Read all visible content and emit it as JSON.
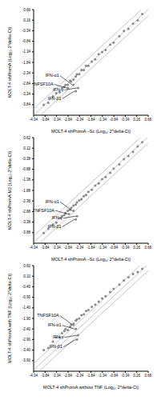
{
  "chart_data": [
    {
      "type": "scatter",
      "x_label": "MOLT-4 shPromA –Sc (Log₁₀ 2^delta-Ct)",
      "y_label": "MOLT-4 shPromA (Log₁₀ 2^delta-Ct)",
      "color": "#888888",
      "line_color": "#9a9a9a",
      "xlim": [
        -4.34,
        0.66
      ],
      "ylim": [
        -4.34,
        0.66
      ],
      "xticks": [
        -4.34,
        -3.84,
        -3.34,
        -2.84,
        -2.34,
        -1.84,
        -1.34,
        -0.84,
        -0.34,
        0.16,
        0.66
      ],
      "yticks": [
        -3.84,
        -3.34,
        -2.84,
        -2.34,
        -1.84,
        -1.34,
        -0.84,
        -0.34,
        0.16,
        0.66
      ],
      "diagonal_offsets": [
        -0.3,
        0,
        0.3
      ],
      "x": [
        -3.9,
        -3.7,
        -3.5,
        -3.35,
        -3.2,
        -3.1,
        -3.0,
        -2.95,
        -2.85,
        -2.75,
        -2.7,
        -2.6,
        -2.5,
        -2.45,
        -2.35,
        -2.25,
        -2.15,
        -2.05,
        -1.95,
        -1.8,
        -1.65,
        -1.5,
        -1.35,
        -1.2,
        -1.0,
        -0.85,
        -0.6,
        -0.4,
        -0.2,
        0.0,
        0.2,
        0.4,
        -2.6,
        -2.85,
        -2.4,
        -2.5
      ],
      "y": [
        -3.85,
        -3.75,
        -3.45,
        -3.3,
        -3.25,
        -3.05,
        -3.0,
        -2.9,
        -2.9,
        -2.7,
        -2.75,
        -2.65,
        -2.5,
        -2.4,
        -2.4,
        -2.2,
        -2.2,
        -2.0,
        -2.0,
        -1.8,
        -1.7,
        -1.45,
        -1.35,
        -1.25,
        -1.0,
        -0.9,
        -0.6,
        -0.35,
        -0.25,
        0.0,
        0.15,
        0.45,
        -2.9,
        -3.05,
        -3.05,
        -3.2
      ],
      "annotations": [
        {
          "text": "IFN-α1",
          "x": -2.6,
          "y": -2.9
        },
        {
          "text": "TNFSF10A",
          "x": -2.85,
          "y": -3.05
        },
        {
          "text": "IFN-γ",
          "x": -2.4,
          "y": -3.05
        },
        {
          "text": "IFN-β1",
          "x": -2.5,
          "y": -3.2
        }
      ]
    },
    {
      "type": "scatter",
      "x_label": "MOLT-4 shPromA –Sc (Log₁₀ 2^delta-Ct)",
      "y_label": "MOLT-4 shPromA-M2 (Log₁₀ 2^delta-Ct)",
      "color": "#888888",
      "line_color": "#9a9a9a",
      "xlim": [
        -4.34,
        0.66
      ],
      "ylim": [
        -4.38,
        0.62
      ],
      "xticks": [
        -4.34,
        -3.84,
        -3.34,
        -2.84,
        -2.34,
        -1.84,
        -1.34,
        -0.84,
        -0.34,
        0.16,
        0.66
      ],
      "yticks": [
        -3.88,
        -3.38,
        -2.88,
        -2.38,
        -1.88,
        -1.38,
        -0.88,
        -0.38,
        0.12,
        0.62
      ],
      "diagonal_offsets": [
        -0.3,
        0,
        0.3
      ],
      "x": [
        -3.9,
        -3.7,
        -3.5,
        -3.35,
        -3.2,
        -3.1,
        -3.0,
        -2.95,
        -2.85,
        -2.75,
        -2.7,
        -2.6,
        -2.5,
        -2.45,
        -2.35,
        -2.25,
        -2.15,
        -2.05,
        -1.95,
        -1.8,
        -1.65,
        -1.5,
        -1.35,
        -1.2,
        -1.0,
        -0.85,
        -0.6,
        -0.4,
        -0.2,
        0.0,
        0.2,
        0.4,
        -2.6,
        -2.8,
        -2.45,
        -2.5
      ],
      "y": [
        -3.9,
        -3.7,
        -3.5,
        -3.4,
        -3.2,
        -3.1,
        -3.05,
        -2.95,
        -2.85,
        -2.8,
        -2.7,
        -2.6,
        -2.55,
        -2.45,
        -2.35,
        -2.3,
        -2.15,
        -2.1,
        -1.95,
        -1.85,
        -1.65,
        -1.55,
        -1.35,
        -1.25,
        -1.05,
        -0.85,
        -0.65,
        -0.4,
        -0.25,
        -0.05,
        0.2,
        0.4,
        -2.85,
        -3.0,
        -3.1,
        -3.25
      ],
      "annotations": [
        {
          "text": "IFN-α1",
          "x": -2.6,
          "y": -2.85
        },
        {
          "text": "TNFSF10A",
          "x": -2.8,
          "y": -3.0
        },
        {
          "text": "IFN-γ",
          "x": -2.45,
          "y": -3.1
        },
        {
          "text": "IFN-β1",
          "x": -2.5,
          "y": -3.25
        }
      ]
    },
    {
      "type": "scatter",
      "x_label": "MOLT-4 shPromA without TNF (Log₁₀ 2^delta-Ct)",
      "y_label": "MOLT-4 shPromA with TNF (Log₁₀ 2^delta-Ct)",
      "color": "#888888",
      "line_color": "#9a9a9a",
      "xlim": [
        -4.34,
        0.66
      ],
      "ylim": [
        -4.4,
        0.6
      ],
      "xticks": [
        -4.34,
        -3.84,
        -3.34,
        -2.84,
        -2.34,
        -1.84,
        -1.34,
        -0.84,
        -0.34,
        0.16,
        0.66
      ],
      "yticks": [
        {
          "value": -3.9,
          "label": "-3.90"
        },
        {
          "value": -3.4,
          "label": "-3.40"
        },
        {
          "value": -2.9,
          "label": "-2.90"
        },
        {
          "value": -2.4,
          "label": "-2.40"
        },
        {
          "value": -1.9,
          "label": "-1.90"
        },
        {
          "value": -1.4,
          "label": "-1.40"
        },
        {
          "value": -0.9,
          "label": "-0.90"
        },
        {
          "value": -0.4,
          "label": "-0.40"
        },
        {
          "value": 0.1,
          "label": "0.10"
        },
        {
          "value": 0.6,
          "label": "0.60"
        }
      ],
      "diagonal_offsets": [
        -0.3,
        0,
        0.3
      ],
      "x": [
        -3.9,
        -3.7,
        -3.5,
        -3.35,
        -3.2,
        -3.1,
        -3.0,
        -2.95,
        -2.85,
        -2.75,
        -2.7,
        -2.6,
        -2.5,
        -2.45,
        -2.35,
        -2.25,
        -2.15,
        -2.05,
        -1.95,
        -1.8,
        -1.65,
        -1.5,
        -1.35,
        -1.2,
        -1.0,
        -0.85,
        -0.6,
        -0.4,
        -0.2,
        0.0,
        0.2,
        0.4,
        -2.6,
        -2.5,
        -2.4,
        -2.45
      ],
      "y": [
        -3.4,
        -3.3,
        -3.0,
        -2.8,
        -2.8,
        -2.6,
        -2.5,
        -2.4,
        -2.45,
        -2.3,
        -2.2,
        -2.15,
        -2.0,
        -1.95,
        -1.9,
        -1.75,
        -1.7,
        -1.55,
        -1.5,
        -1.35,
        -1.25,
        -1.1,
        -0.95,
        -0.85,
        -0.65,
        -0.5,
        -0.3,
        -0.1,
        0.05,
        0.2,
        0.3,
        0.45,
        -2.2,
        -2.4,
        -2.7,
        -2.9
      ],
      "annotations": [
        {
          "text": "TNFSF10A",
          "x": -2.6,
          "y": -2.2
        },
        {
          "text": "IFN-α1",
          "x": -2.5,
          "y": -2.4
        },
        {
          "text": "IFN-γ",
          "x": -2.4,
          "y": -2.7
        },
        {
          "text": "IFN-β1",
          "x": -2.45,
          "y": -2.9
        }
      ]
    }
  ]
}
